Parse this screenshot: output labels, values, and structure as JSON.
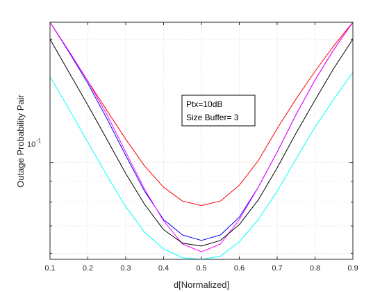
{
  "chart_data": {
    "type": "line",
    "title": "",
    "xlabel": "d[Normalized]",
    "ylabel": "Outage Probability Pair",
    "xlim": [
      0.1,
      0.9
    ],
    "ylim": [
      0.058,
      0.22
    ],
    "yscale": "log",
    "grid": true,
    "x_ticks": [
      0.1,
      0.2,
      0.3,
      0.4,
      0.5,
      0.6,
      0.7,
      0.8,
      0.9
    ],
    "x_tick_labels": [
      "0.1",
      "0.2",
      "0.3",
      "0.4",
      "0.5",
      "0.6",
      "0.7",
      "0.8",
      "0.9"
    ],
    "y_tick_label": {
      "value": 0.1,
      "base": "10",
      "exponent": "-1"
    },
    "y_minor_ticks": [
      0.06,
      0.07,
      0.08,
      0.09,
      0.2
    ],
    "annotation": {
      "lines": [
        "Ptx=10dB",
        "Size Buffer= 3"
      ]
    },
    "x": [
      0.1,
      0.15,
      0.2,
      0.25,
      0.3,
      0.35,
      0.4,
      0.45,
      0.5,
      0.55,
      0.6,
      0.65,
      0.7,
      0.75,
      0.8,
      0.85,
      0.9
    ],
    "series": [
      {
        "color": "#ff0000",
        "values": [
          0.22,
          0.187,
          0.158,
          0.134,
          0.114,
          0.098,
          0.087,
          0.0805,
          0.0785,
          0.0805,
          0.088,
          0.101,
          0.121,
          0.143,
          0.167,
          0.193,
          0.22
        ]
      },
      {
        "color": "#0000ff",
        "values": [
          0.22,
          0.186,
          0.156,
          0.128,
          0.104,
          0.085,
          0.0725,
          0.0665,
          0.0645,
          0.0665,
          0.0735,
          0.087,
          0.106,
          0.131,
          0.159,
          0.189,
          0.22
        ]
      },
      {
        "color": "#ff00ff",
        "values": [
          0.22,
          0.187,
          0.158,
          0.131,
          0.106,
          0.086,
          0.072,
          0.0632,
          0.0605,
          0.0632,
          0.0725,
          0.087,
          0.106,
          0.131,
          0.159,
          0.189,
          0.22
        ]
      },
      {
        "color": "#000000",
        "values": [
          0.2,
          0.166,
          0.138,
          0.114,
          0.094,
          0.079,
          0.0685,
          0.0635,
          0.0625,
          0.0645,
          0.0705,
          0.081,
          0.097,
          0.118,
          0.142,
          0.17,
          0.2
        ]
      },
      {
        "color": "#00ffff",
        "values": [
          0.162,
          0.135,
          0.112,
          0.093,
          0.078,
          0.0675,
          0.0615,
          0.0585,
          0.058,
          0.059,
          0.064,
          0.0725,
          0.085,
          0.102,
          0.122,
          0.143,
          0.166
        ]
      }
    ]
  }
}
